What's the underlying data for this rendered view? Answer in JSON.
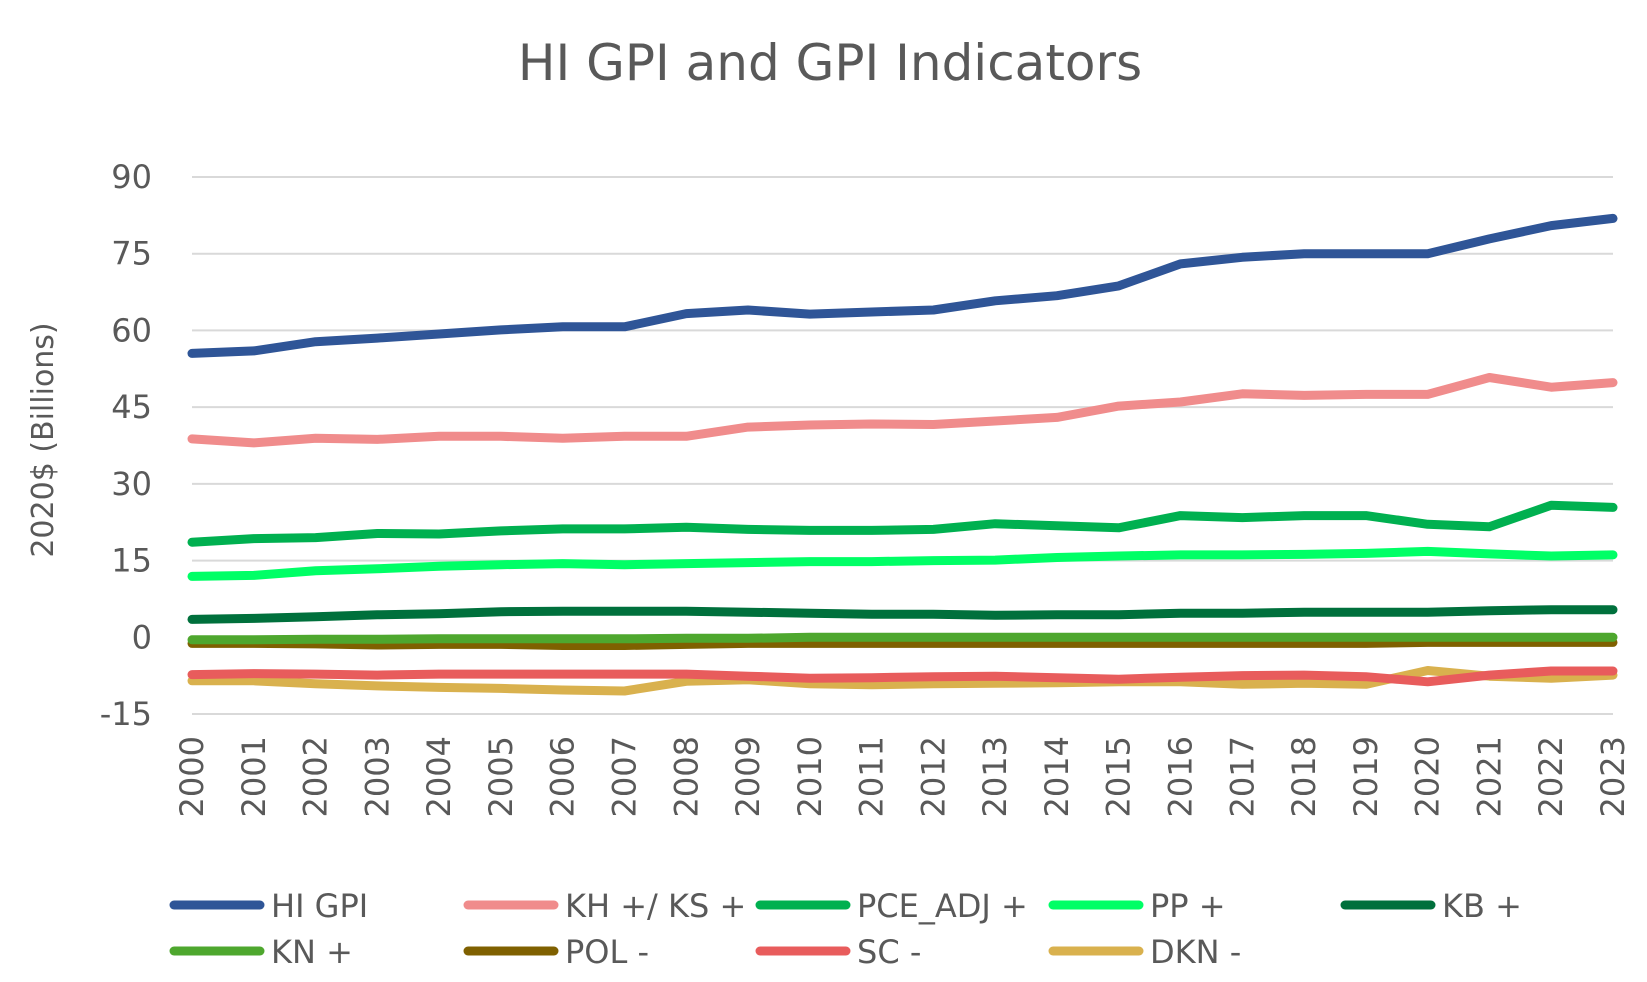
{
  "chart_data": {
    "type": "line",
    "title": "HI GPI and GPI Indicators",
    "xlabel": "",
    "ylabel": "2020$ (Billions)",
    "ylim": [
      -15,
      90
    ],
    "yticks": [
      -15,
      0,
      15,
      30,
      45,
      60,
      75,
      90
    ],
    "grid": true,
    "legend_position": "bottom",
    "x": [
      "2000",
      "2001",
      "2002",
      "2003",
      "2004",
      "2005",
      "2006",
      "2007",
      "2008",
      "2009",
      "2010",
      "2011",
      "2012",
      "2013",
      "2014",
      "2015",
      "2016",
      "2017",
      "2018",
      "2019",
      "2020",
      "2021",
      "2022",
      "2023"
    ],
    "series": [
      {
        "name": "HI GPI",
        "color": "#2f5597",
        "values": [
          55.5,
          56,
          57.8,
          58.5,
          59.3,
          60.1,
          60.7,
          60.7,
          63.3,
          64,
          63.2,
          63.6,
          64,
          65.8,
          66.8,
          68.7,
          73,
          74.3,
          75,
          75,
          75,
          77.9,
          80.5,
          81.9
        ]
      },
      {
        "name": "KH +/ KS +",
        "color": "#f08c8c",
        "values": [
          38.8,
          38,
          38.9,
          38.7,
          39.3,
          39.3,
          38.9,
          39.3,
          39.3,
          41.1,
          41.5,
          41.7,
          41.6,
          42.3,
          43,
          45.2,
          46,
          47.6,
          47.3,
          47.5,
          47.5,
          50.8,
          48.9,
          49.8
        ]
      },
      {
        "name": "PCE_ADJ +",
        "color": "#00b050",
        "values": [
          18.6,
          19.3,
          19.5,
          20.3,
          20.2,
          20.8,
          21.2,
          21.2,
          21.5,
          21.1,
          20.9,
          20.9,
          21.1,
          22.2,
          21.8,
          21.4,
          23.8,
          23.4,
          23.8,
          23.8,
          22.1,
          21.6,
          25.8,
          25.4
        ]
      },
      {
        "name": "PP +",
        "color": "#00ff66",
        "values": [
          11.9,
          12.1,
          13,
          13.4,
          13.9,
          14.2,
          14.4,
          14.2,
          14.4,
          14.6,
          14.8,
          14.8,
          15,
          15.1,
          15.6,
          15.9,
          16.1,
          16.1,
          16.2,
          16.4,
          16.8,
          16.3,
          15.9,
          16.1
        ]
      },
      {
        "name": "KB +",
        "color": "#00703c",
        "values": [
          3.5,
          3.7,
          4,
          4.4,
          4.6,
          5,
          5.1,
          5.1,
          5.1,
          4.9,
          4.7,
          4.5,
          4.5,
          4.3,
          4.4,
          4.4,
          4.7,
          4.7,
          4.9,
          4.9,
          4.9,
          5.2,
          5.4,
          5.4
        ]
      },
      {
        "name": "KN +",
        "color": "#4ea72e",
        "values": [
          -0.5,
          -0.5,
          -0.4,
          -0.4,
          -0.3,
          -0.3,
          -0.3,
          -0.3,
          -0.2,
          -0.2,
          0,
          0,
          0,
          0,
          0,
          0,
          0,
          0,
          0,
          0,
          0,
          0,
          0,
          0
        ]
      },
      {
        "name": "POL -",
        "color": "#7f6000",
        "values": [
          -1.2,
          -1.2,
          -1.3,
          -1.5,
          -1.4,
          -1.4,
          -1.6,
          -1.6,
          -1.4,
          -1.2,
          -1.2,
          -1.2,
          -1.2,
          -1.2,
          -1.2,
          -1.2,
          -1.2,
          -1.2,
          -1.2,
          -1.2,
          -1,
          -1,
          -1,
          -1
        ]
      },
      {
        "name": "SC -",
        "color": "#e85c5c",
        "values": [
          -7.3,
          -7.1,
          -7.2,
          -7.4,
          -7.2,
          -7.2,
          -7.2,
          -7.2,
          -7.2,
          -7.6,
          -8,
          -7.9,
          -7.7,
          -7.6,
          -7.9,
          -8.2,
          -7.8,
          -7.5,
          -7.4,
          -7.7,
          -8.7,
          -7.4,
          -6.6,
          -6.6
        ]
      },
      {
        "name": "DKN -",
        "color": "#d9b14e",
        "values": [
          -8.5,
          -8.5,
          -9.1,
          -9.5,
          -9.8,
          -10,
          -10.3,
          -10.5,
          -8.6,
          -8.3,
          -9.1,
          -9.3,
          -9.1,
          -9,
          -8.9,
          -8.7,
          -8.7,
          -9.2,
          -9,
          -9.2,
          -6.5,
          -7.6,
          -8,
          -7.4
        ]
      }
    ]
  }
}
